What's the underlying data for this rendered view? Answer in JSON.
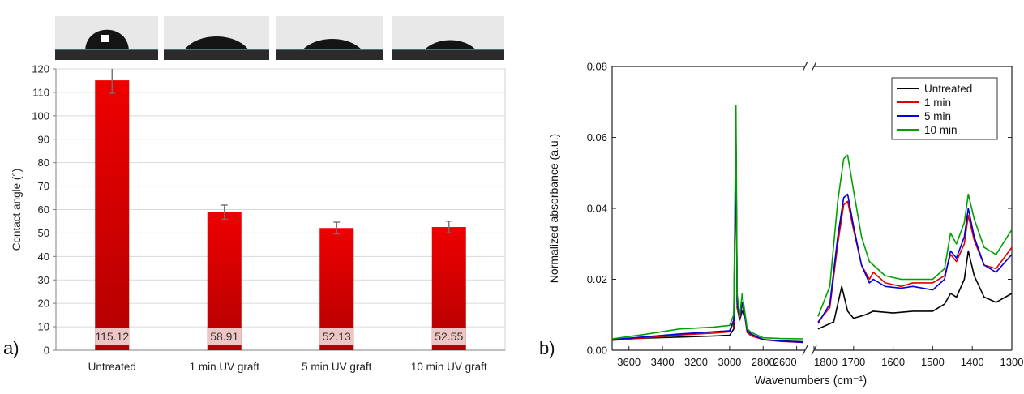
{
  "panel_labels": {
    "a": "a)",
    "b": "b)"
  },
  "chart_data": [
    {
      "type": "bar",
      "title": "",
      "xlabel": "",
      "ylabel": "Contact angle (°)",
      "ylim": [
        0,
        120
      ],
      "yticks": [
        0,
        10,
        20,
        30,
        40,
        50,
        60,
        70,
        80,
        90,
        100,
        110,
        120
      ],
      "grid": true,
      "categories": [
        "Untreated",
        "1 min UV graft",
        "5 min UV graft",
        "10 min UV graft"
      ],
      "values": [
        115.12,
        58.91,
        52.13,
        52.55
      ],
      "errors": [
        5.5,
        3.0,
        2.5,
        2.5
      ],
      "data_labels": [
        "115.12",
        "58.91",
        "52.13",
        "52.55"
      ],
      "bar_color": "#ee0000",
      "bar_color_dark": "#b20000",
      "droplet_images": 4
    },
    {
      "type": "line",
      "title": "",
      "xlabel": "Wavenumbers (cm⁻¹)",
      "ylabel": "Normalized absorbance (a.u.)",
      "ylim": [
        0,
        0.08
      ],
      "yticks": [
        "0.00",
        "0.02",
        "0.04",
        "0.06",
        "0.08"
      ],
      "x_axis_broken": true,
      "x_reversed": true,
      "x_segment_left": {
        "range": [
          3700,
          2550
        ],
        "ticks": [
          "3600",
          "3400",
          "3200",
          "3000",
          "2800",
          "2600"
        ]
      },
      "x_segment_right": {
        "range": [
          1800,
          1300
        ],
        "ticks": [
          "1800",
          "1700",
          "1600",
          "1500",
          "1400",
          "1300"
        ]
      },
      "legend": {
        "placement": "top-right",
        "entries": [
          "Untreated",
          "1 min",
          "5 min",
          "10 min"
        ]
      },
      "series": [
        {
          "name": "Untreated",
          "color": "#000000",
          "left": [
            [
              3700,
              0.003
            ],
            [
              3500,
              0.0034
            ],
            [
              3300,
              0.0037
            ],
            [
              3100,
              0.004
            ],
            [
              3000,
              0.0042
            ],
            [
              2975,
              0.006
            ],
            [
              2962,
              0.06
            ],
            [
              2955,
              0.012
            ],
            [
              2940,
              0.0085
            ],
            [
              2925,
              0.011
            ],
            [
              2910,
              0.01
            ],
            [
              2895,
              0.005
            ],
            [
              2870,
              0.0045
            ],
            [
              2800,
              0.003
            ],
            [
              2700,
              0.0026
            ],
            [
              2560,
              0.0024
            ]
          ],
          "right": [
            [
              1790,
              0.006
            ],
            [
              1750,
              0.008
            ],
            [
              1730,
              0.018
            ],
            [
              1715,
              0.011
            ],
            [
              1700,
              0.009
            ],
            [
              1670,
              0.01
            ],
            [
              1650,
              0.011
            ],
            [
              1600,
              0.0105
            ],
            [
              1550,
              0.011
            ],
            [
              1500,
              0.011
            ],
            [
              1470,
              0.013
            ],
            [
              1455,
              0.016
            ],
            [
              1440,
              0.015
            ],
            [
              1420,
              0.02
            ],
            [
              1410,
              0.028
            ],
            [
              1395,
              0.021
            ],
            [
              1370,
              0.015
            ],
            [
              1340,
              0.0135
            ],
            [
              1300,
              0.016
            ]
          ]
        },
        {
          "name": "1 min",
          "color": "#e00000",
          "left": [
            [
              3700,
              0.0028
            ],
            [
              3500,
              0.0035
            ],
            [
              3300,
              0.0043
            ],
            [
              3100,
              0.0048
            ],
            [
              3000,
              0.0052
            ],
            [
              2975,
              0.008
            ],
            [
              2962,
              0.06
            ],
            [
              2955,
              0.013
            ],
            [
              2940,
              0.0085
            ],
            [
              2925,
              0.013
            ],
            [
              2910,
              0.01
            ],
            [
              2895,
              0.005
            ],
            [
              2870,
              0.004
            ],
            [
              2800,
              0.003
            ],
            [
              2700,
              0.0025
            ],
            [
              2560,
              0.0022
            ]
          ],
          "right": [
            [
              1790,
              0.008
            ],
            [
              1760,
              0.012
            ],
            [
              1740,
              0.03
            ],
            [
              1725,
              0.041
            ],
            [
              1715,
              0.042
            ],
            [
              1700,
              0.034
            ],
            [
              1680,
              0.024
            ],
            [
              1660,
              0.02
            ],
            [
              1650,
              0.022
            ],
            [
              1620,
              0.019
            ],
            [
              1580,
              0.018
            ],
            [
              1550,
              0.019
            ],
            [
              1500,
              0.019
            ],
            [
              1470,
              0.021
            ],
            [
              1455,
              0.027
            ],
            [
              1440,
              0.025
            ],
            [
              1420,
              0.03
            ],
            [
              1410,
              0.038
            ],
            [
              1395,
              0.031
            ],
            [
              1370,
              0.024
            ],
            [
              1340,
              0.023
            ],
            [
              1300,
              0.029
            ]
          ]
        },
        {
          "name": "5 min",
          "color": "#0000e0",
          "left": [
            [
              3700,
              0.003
            ],
            [
              3500,
              0.0038
            ],
            [
              3300,
              0.0046
            ],
            [
              3100,
              0.0052
            ],
            [
              3000,
              0.0055
            ],
            [
              2975,
              0.0085
            ],
            [
              2962,
              0.058
            ],
            [
              2955,
              0.014
            ],
            [
              2940,
              0.009
            ],
            [
              2925,
              0.0135
            ],
            [
              2910,
              0.01
            ],
            [
              2895,
              0.0055
            ],
            [
              2870,
              0.0045
            ],
            [
              2800,
              0.003
            ],
            [
              2700,
              0.0026
            ],
            [
              2560,
              0.0022
            ]
          ],
          "right": [
            [
              1790,
              0.0075
            ],
            [
              1760,
              0.013
            ],
            [
              1740,
              0.032
            ],
            [
              1725,
              0.043
            ],
            [
              1715,
              0.044
            ],
            [
              1700,
              0.035
            ],
            [
              1680,
              0.024
            ],
            [
              1660,
              0.019
            ],
            [
              1650,
              0.02
            ],
            [
              1620,
              0.018
            ],
            [
              1580,
              0.0175
            ],
            [
              1550,
              0.018
            ],
            [
              1500,
              0.017
            ],
            [
              1470,
              0.02
            ],
            [
              1455,
              0.028
            ],
            [
              1440,
              0.026
            ],
            [
              1420,
              0.032
            ],
            [
              1410,
              0.04
            ],
            [
              1395,
              0.032
            ],
            [
              1370,
              0.024
            ],
            [
              1340,
              0.022
            ],
            [
              1300,
              0.027
            ]
          ]
        },
        {
          "name": "10 min",
          "color": "#00a000",
          "left": [
            [
              3700,
              0.0032
            ],
            [
              3500,
              0.0045
            ],
            [
              3300,
              0.006
            ],
            [
              3100,
              0.0065
            ],
            [
              3000,
              0.007
            ],
            [
              2975,
              0.01
            ],
            [
              2962,
              0.069
            ],
            [
              2955,
              0.016
            ],
            [
              2940,
              0.0095
            ],
            [
              2925,
              0.016
            ],
            [
              2910,
              0.011
            ],
            [
              2895,
              0.006
            ],
            [
              2870,
              0.005
            ],
            [
              2800,
              0.0035
            ],
            [
              2700,
              0.0033
            ],
            [
              2560,
              0.0032
            ]
          ],
          "right": [
            [
              1790,
              0.0095
            ],
            [
              1760,
              0.018
            ],
            [
              1740,
              0.042
            ],
            [
              1725,
              0.054
            ],
            [
              1715,
              0.055
            ],
            [
              1700,
              0.045
            ],
            [
              1680,
              0.032
            ],
            [
              1660,
              0.025
            ],
            [
              1620,
              0.021
            ],
            [
              1580,
              0.02
            ],
            [
              1550,
              0.02
            ],
            [
              1500,
              0.02
            ],
            [
              1470,
              0.023
            ],
            [
              1455,
              0.033
            ],
            [
              1440,
              0.03
            ],
            [
              1420,
              0.036
            ],
            [
              1410,
              0.044
            ],
            [
              1395,
              0.037
            ],
            [
              1370,
              0.029
            ],
            [
              1340,
              0.027
            ],
            [
              1300,
              0.034
            ]
          ]
        }
      ]
    }
  ]
}
